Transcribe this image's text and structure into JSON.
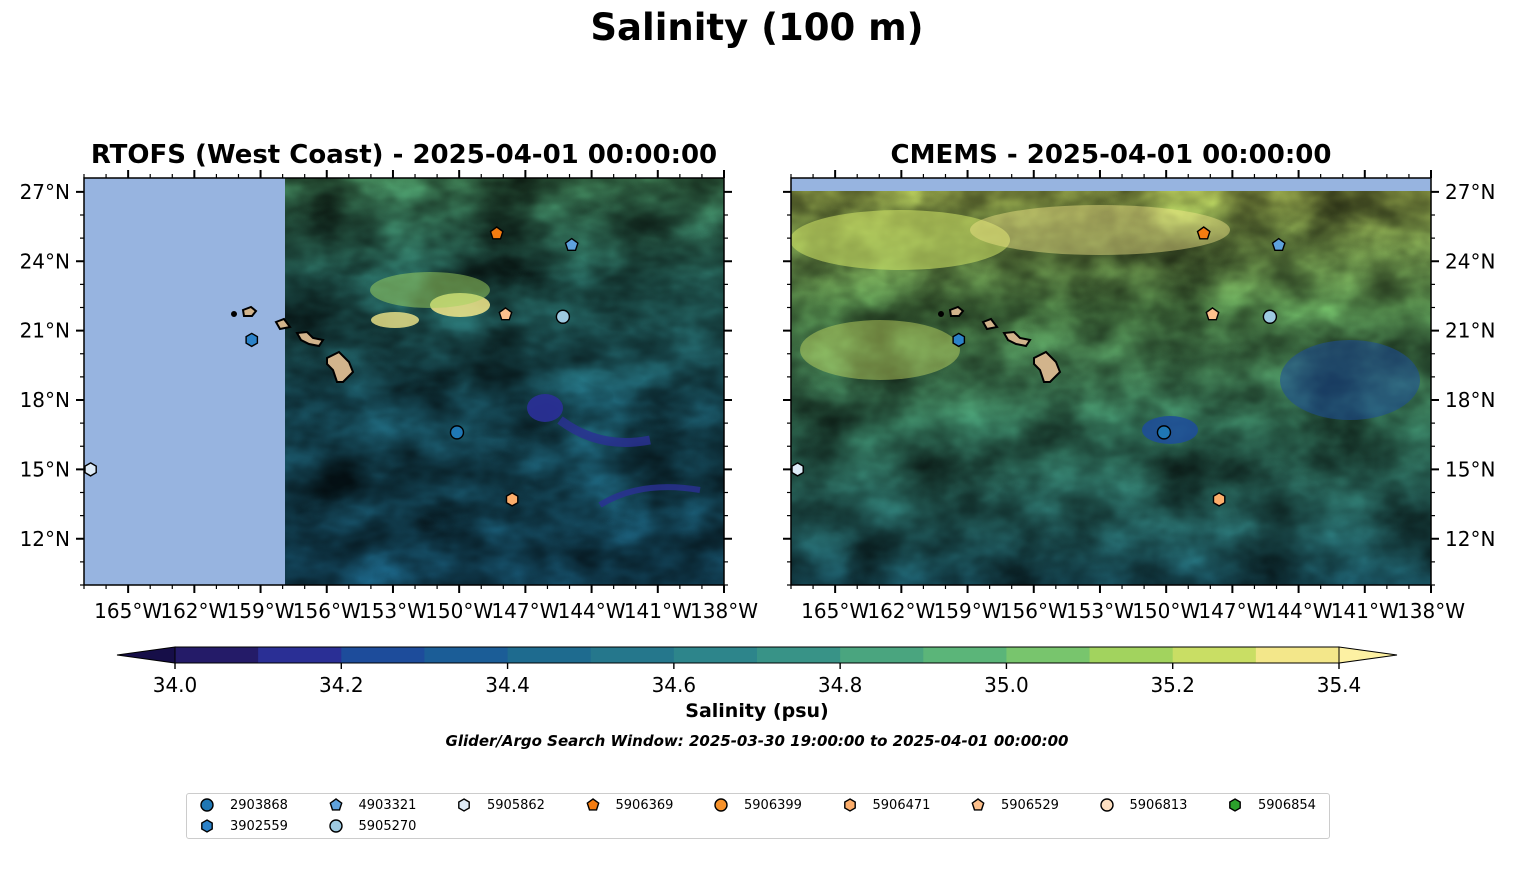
{
  "figure": {
    "title": "Salinity (100 m)",
    "colorbar_label": "Salinity (psu)",
    "search_window": "Glider/Argo Search Window: 2025-03-30 19:00:00 to 2025-04-01 00:00:00"
  },
  "chart_data": {
    "type": "heatmap",
    "colorbar": {
      "min": 34.0,
      "max": 35.4,
      "step": 0.1,
      "extend": "both",
      "ticks": [
        "34.0",
        "34.2",
        "34.4",
        "34.6",
        "34.8",
        "35.0",
        "35.2",
        "35.4"
      ],
      "colors": [
        "#241b68",
        "#2a2f95",
        "#1d4c9b",
        "#1b5d97",
        "#1e6b8f",
        "#25778c",
        "#2d858b",
        "#389387",
        "#4aa57f",
        "#5bb579",
        "#78c56d",
        "#a2d35e",
        "#c9de64",
        "#f3e78a"
      ],
      "under_color": "#160e48",
      "over_color": "#fdf1a3"
    },
    "maps": [
      {
        "title": "RTOFS (West Coast) - 2025-04-01 00:00:00",
        "xlim": [
          -167.0,
          -138.0
        ],
        "ylim": [
          10.0,
          27.6
        ],
        "xticks": [
          "165°W",
          "162°W",
          "159°W",
          "156°W",
          "153°W",
          "150°W",
          "147°W",
          "144°W",
          "141°W",
          "138°W"
        ],
        "yticks": [
          "27°N",
          "24°N",
          "21°N",
          "18°N",
          "15°N",
          "12°N"
        ],
        "ytick_side": "left",
        "model_domain_lon_min": -157.9,
        "background": "#97b4e0"
      },
      {
        "title": "CMEMS - 2025-04-01 00:00:00",
        "xlim": [
          -167.0,
          -138.0
        ],
        "ylim": [
          10.0,
          27.6
        ],
        "xticks": [
          "165°W",
          "162°W",
          "159°W",
          "156°W",
          "153°W",
          "150°W",
          "147°W",
          "144°W",
          "141°W",
          "138°W"
        ],
        "yticks": [
          "27°N",
          "24°N",
          "21°N",
          "18°N",
          "15°N",
          "12°N"
        ],
        "ytick_side": "right",
        "model_domain_lat_max": 27.0,
        "background": "#97b4e0"
      }
    ],
    "platforms": [
      {
        "id": "2903868",
        "marker": "circle",
        "color": "#1f77b4",
        "lon": -150.1,
        "lat": 16.6
      },
      {
        "id": "3902559",
        "marker": "hexagon",
        "color": "#2b82c9",
        "lon": -159.4,
        "lat": 20.6
      },
      {
        "id": "4903321",
        "marker": "pentagon",
        "color": "#5fa2dd",
        "lon": -144.9,
        "lat": 24.7
      },
      {
        "id": "5905270",
        "marker": "circle",
        "color": "#9ecae1",
        "lon": -145.3,
        "lat": 21.6
      },
      {
        "id": "5905862",
        "marker": "hexagon",
        "color": "#deebf7",
        "lon": -166.7,
        "lat": 15.0
      },
      {
        "id": "5906369",
        "marker": "pentagon",
        "color": "#f57c10",
        "lon": -148.3,
        "lat": 25.2
      },
      {
        "id": "5906399",
        "marker": "circle",
        "color": "#f7922a",
        "lon": null,
        "lat": null
      },
      {
        "id": "5906471",
        "marker": "hexagon",
        "color": "#fdae6b",
        "lon": -147.6,
        "lat": 13.7
      },
      {
        "id": "5906529",
        "marker": "pentagon",
        "color": "#fdc08c",
        "lon": -147.9,
        "lat": 21.7
      },
      {
        "id": "5906813",
        "marker": "circle",
        "color": "#fee0c2",
        "lon": null,
        "lat": null
      },
      {
        "id": "5906854",
        "marker": "hexagon",
        "color": "#2ca02c",
        "lon": null,
        "lat": null
      }
    ],
    "land_color": "#d2b48c"
  }
}
